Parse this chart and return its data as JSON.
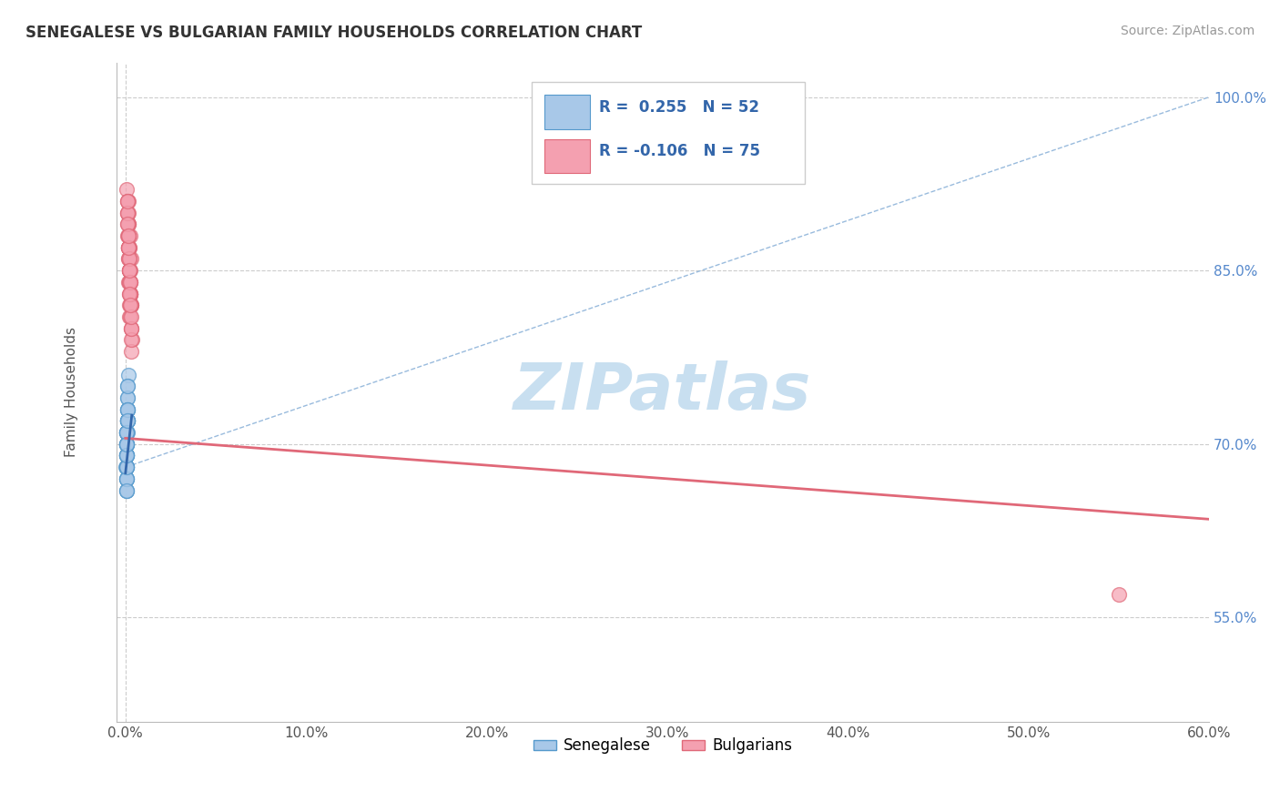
{
  "title": "SENEGALESE VS BULGARIAN FAMILY HOUSEHOLDS CORRELATION CHART",
  "source": "Source: ZipAtlas.com",
  "ylabel": "Family Households",
  "x_tick_labels": [
    "0.0%",
    "",
    "10.0%",
    "",
    "20.0%",
    "",
    "30.0%",
    "",
    "40.0%",
    "",
    "50.0%",
    "",
    "60.0%"
  ],
  "x_tick_values": [
    0,
    5,
    10,
    15,
    20,
    25,
    30,
    35,
    40,
    45,
    50,
    55,
    60
  ],
  "x_tick_labels_shown": [
    "0.0%",
    "10.0%",
    "20.0%",
    "30.0%",
    "40.0%",
    "50.0%",
    "60.0%"
  ],
  "x_tick_values_shown": [
    0,
    10,
    20,
    30,
    40,
    50,
    60
  ],
  "y_tick_labels": [
    "55.0%",
    "70.0%",
    "85.0%",
    "100.0%"
  ],
  "y_tick_values": [
    55,
    70,
    85,
    100
  ],
  "blue_color": "#a8c8e8",
  "pink_color": "#f4a0b0",
  "blue_edge_color": "#5599cc",
  "pink_edge_color": "#e06878",
  "blue_line_color": "#3366aa",
  "pink_line_color": "#e06878",
  "diag_line_color": "#99bbdd",
  "watermark_color": "#c8dff0",
  "grid_color": "#cccccc",
  "background_color": "#ffffff",
  "legend_r_blue": "R =  0.255",
  "legend_n_blue": "N = 52",
  "legend_r_pink": "R = -0.106",
  "legend_n_pink": "N = 75",
  "legend_text_color": "#3366aa",
  "legend_blue_label": "Senegalese",
  "legend_pink_label": "Bulgarians",
  "blue_scatter_x": [
    0.05,
    0.08,
    0.03,
    0.12,
    0.06,
    0.09,
    0.04,
    0.15,
    0.07,
    0.11,
    0.05,
    0.08,
    0.13,
    0.06,
    0.1,
    0.04,
    0.07,
    0.09,
    0.12,
    0.05,
    0.06,
    0.08,
    0.04,
    0.11,
    0.07,
    0.09,
    0.05,
    0.13,
    0.06,
    0.1,
    0.04,
    0.07,
    0.08,
    0.05,
    0.09,
    0.06,
    0.11,
    0.04,
    0.07,
    0.08,
    0.05,
    0.06,
    0.09,
    0.04,
    0.07,
    0.08,
    0.1,
    0.05,
    0.06,
    0.09,
    0.07,
    0.04
  ],
  "blue_scatter_y": [
    70,
    71,
    68,
    74,
    69,
    72,
    67,
    76,
    70,
    73,
    68,
    71,
    75,
    69,
    72,
    66,
    70,
    71,
    74,
    68,
    69,
    71,
    67,
    73,
    70,
    72,
    68,
    75,
    69,
    72,
    66,
    70,
    71,
    68,
    72,
    69,
    73,
    67,
    70,
    71,
    68,
    69,
    72,
    67,
    70,
    71,
    73,
    68,
    69,
    72,
    70,
    66
  ],
  "pink_scatter_x": [
    0.15,
    0.25,
    0.18,
    0.3,
    0.22,
    0.12,
    0.28,
    0.2,
    0.35,
    0.16,
    0.24,
    0.19,
    0.32,
    0.14,
    0.27,
    0.21,
    0.08,
    0.26,
    0.17,
    0.23,
    0.31,
    0.13,
    0.29,
    0.2,
    0.15,
    0.24,
    0.18,
    0.33,
    0.11,
    0.27,
    0.22,
    0.16,
    0.3,
    0.19,
    0.25,
    0.14,
    0.28,
    0.21,
    0.17,
    0.32,
    0.1,
    0.23,
    0.15,
    0.26,
    0.19,
    0.22,
    0.29,
    0.13,
    0.2,
    0.24,
    0.17,
    0.31,
    0.12,
    0.25,
    0.18,
    0.27,
    0.14,
    0.21,
    0.16,
    0.28,
    0.11,
    0.23,
    0.19,
    0.3,
    0.15,
    0.24,
    0.17,
    0.26,
    0.2,
    0.22,
    0.13,
    0.28,
    0.16,
    55.0,
    0.09
  ],
  "pink_scatter_y": [
    91,
    88,
    84,
    86,
    82,
    90,
    85,
    83,
    79,
    87,
    82,
    85,
    80,
    89,
    83,
    86,
    92,
    84,
    87,
    81,
    78,
    88,
    82,
    85,
    90,
    83,
    86,
    80,
    91,
    84,
    87,
    89,
    82,
    85,
    83,
    88,
    81,
    86,
    87,
    79,
    91,
    84,
    89,
    83,
    85,
    87,
    82,
    90,
    85,
    83,
    87,
    80,
    89,
    84,
    86,
    83,
    88,
    85,
    87,
    82,
    90,
    84,
    86,
    81,
    88,
    83,
    87,
    84,
    85,
    83,
    89,
    82,
    88,
    57,
    91
  ],
  "xlim": [
    -0.5,
    60
  ],
  "ylim": [
    46,
    103
  ],
  "pink_reg_x0": 0,
  "pink_reg_y0": 70.5,
  "pink_reg_x1": 60,
  "pink_reg_y1": 63.5,
  "blue_reg_x0": 0,
  "blue_reg_y0": 67.5,
  "blue_reg_x1": 0.35,
  "blue_reg_y1": 72.5
}
